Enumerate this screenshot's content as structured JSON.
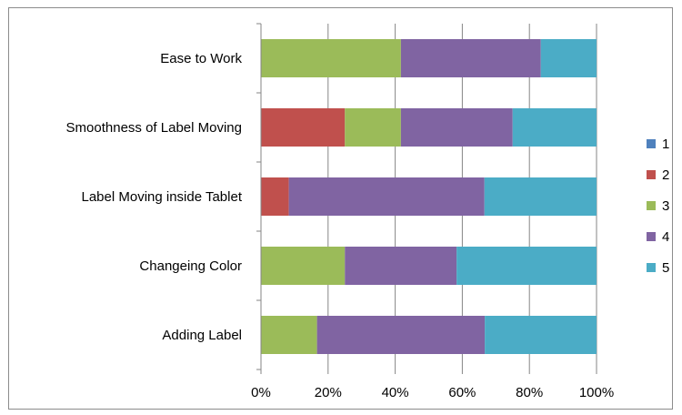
{
  "chart_data": {
    "type": "bar",
    "orientation": "horizontal",
    "stacked": "percent",
    "categories": [
      "Ease to Work",
      "Smoothness of Label Moving",
      "Label Moving inside Tablet",
      "Changeing Color",
      "Adding Label"
    ],
    "series": [
      {
        "name": "1",
        "color": "#4f81bd",
        "values": [
          0,
          0,
          0,
          0,
          0
        ]
      },
      {
        "name": "2",
        "color": "#c0504d",
        "values": [
          0,
          25,
          8.3,
          0,
          0
        ]
      },
      {
        "name": "3",
        "color": "#9bbb59",
        "values": [
          41.7,
          16.7,
          0,
          25,
          16.7
        ]
      },
      {
        "name": "4",
        "color": "#8064a2",
        "values": [
          41.7,
          33.3,
          58.3,
          33.3,
          50
        ]
      },
      {
        "name": "5",
        "color": "#4bacc6",
        "values": [
          16.6,
          25,
          33.4,
          41.7,
          33.3
        ]
      }
    ],
    "xlim": [
      0,
      100
    ],
    "x_ticks": [
      "0%",
      "20%",
      "40%",
      "60%",
      "80%",
      "100%"
    ],
    "grid": "vertical major gridlines",
    "legend_position": "right"
  }
}
